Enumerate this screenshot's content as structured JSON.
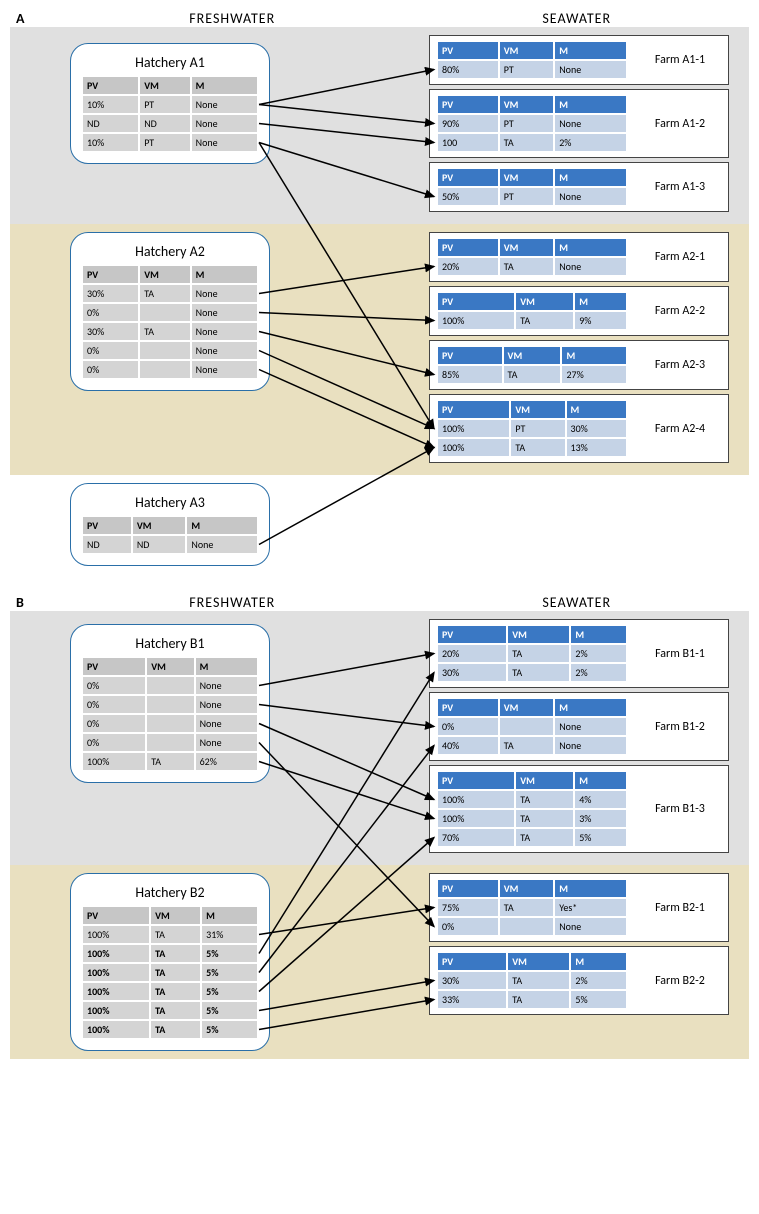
{
  "colors": {
    "region_grey": "#e0e0e0",
    "region_tan": "#e9e0c0",
    "hatch_header_bg": "#c6c6c6",
    "hatch_cell_bg": "#d4d4d4",
    "farm_header_bg": "#3a78c4",
    "farm_header_text": "#ffffff",
    "farm_cell_bg": "#c5d3e6",
    "arrow": "#000000",
    "dashed_arrow": "#a80000",
    "border_blue": "#2a6fa8"
  },
  "column_headers": [
    "PV",
    "VM",
    "M"
  ],
  "header_labels": {
    "left": "FRESHWATER",
    "right": "SEAWATER"
  },
  "panels": [
    {
      "id": "A",
      "regions": [
        {
          "bg": "region_grey",
          "hatchery": {
            "name": "Hatchery A1",
            "rows": [
              [
                "10%",
                "PT",
                "None"
              ],
              [
                "ND",
                "ND",
                "None"
              ],
              [
                "10%",
                "PT",
                "None"
              ]
            ]
          },
          "farms": [
            {
              "name": "Farm A1-1",
              "rows": [
                [
                  "80%",
                  "PT",
                  "None"
                ]
              ]
            },
            {
              "name": "Farm A1-2",
              "rows": [
                [
                  "90%",
                  "PT",
                  "None"
                ],
                [
                  "100",
                  "TA",
                  "2%"
                ]
              ]
            },
            {
              "name": "Farm A1-3",
              "rows": [
                [
                  "50%",
                  "PT",
                  "None"
                ]
              ]
            }
          ]
        },
        {
          "bg": "region_tan",
          "hatchery": {
            "name": "Hatchery A2",
            "rows": [
              [
                "30%",
                "TA",
                "None"
              ],
              [
                "0%",
                "",
                "None"
              ],
              [
                "30%",
                "TA",
                "None"
              ],
              [
                "0%",
                "",
                "None"
              ],
              [
                "0%",
                "",
                "None"
              ]
            ]
          },
          "farms": [
            {
              "name": "Farm A2-1",
              "rows": [
                [
                  "20%",
                  "TA",
                  "None"
                ]
              ]
            },
            {
              "name": "Farm A2-2",
              "rows": [
                [
                  "100%",
                  "TA",
                  "9%"
                ]
              ]
            },
            {
              "name": "Farm A2-3",
              "rows": [
                [
                  "85%",
                  "TA",
                  "27%"
                ]
              ]
            },
            {
              "name": "Farm A2-4",
              "rows": [
                [
                  "100%",
                  "PT",
                  "30%"
                ],
                [
                  "100%",
                  "TA",
                  "13%"
                ]
              ]
            }
          ]
        },
        {
          "bg": "none",
          "hatchery": {
            "name": "Hatchery A3",
            "rows": [
              [
                "ND",
                "ND",
                "None"
              ]
            ]
          },
          "farms": []
        }
      ],
      "connectors": [
        {
          "from": "A1-r0",
          "to": "FA1-1-r0"
        },
        {
          "from": "A1-r0",
          "to": "FA1-2-r0"
        },
        {
          "from": "A1-r1",
          "to": "FA1-2-r1"
        },
        {
          "from": "A1-r2",
          "to": "FA1-3-r0"
        },
        {
          "from": "A1-r2",
          "to": "FA2-4-r0"
        },
        {
          "from": "A2-r0",
          "to": "FA2-1-r0"
        },
        {
          "from": "A2-r1",
          "to": "FA2-2-r0"
        },
        {
          "from": "A2-r2",
          "to": "FA2-3-r0"
        },
        {
          "from": "A2-r3",
          "to": "FA2-4-r0"
        },
        {
          "from": "A2-r4",
          "to": "FA2-4-r1"
        },
        {
          "from": "A3-r0",
          "to": "FA2-4-r1"
        }
      ]
    },
    {
      "id": "B",
      "regions": [
        {
          "bg": "region_grey",
          "hatchery": {
            "name": "Hatchery B1",
            "rows": [
              [
                "0%",
                "",
                "None"
              ],
              [
                "0%",
                "",
                "None"
              ],
              [
                "0%",
                "",
                "None"
              ],
              [
                "0%",
                "",
                "None"
              ],
              [
                "100%",
                "TA",
                "62%"
              ]
            ]
          },
          "farms": [
            {
              "name": "Farm B1-1",
              "rows": [
                [
                  "20%",
                  "TA",
                  "2%"
                ],
                [
                  "30%",
                  "TA",
                  "2%"
                ]
              ]
            },
            {
              "name": "Farm B1-2",
              "rows": [
                [
                  "0%",
                  "",
                  "None"
                ],
                [
                  "40%",
                  "TA",
                  "None"
                ]
              ]
            },
            {
              "name": "Farm B1-3",
              "rows": [
                [
                  "100%",
                  "TA",
                  "4%"
                ],
                [
                  "100%",
                  "TA",
                  "3%"
                ],
                [
                  "70%",
                  "TA",
                  "5%"
                ]
              ]
            }
          ]
        },
        {
          "bg": "region_tan",
          "hatchery": {
            "name": "Hatchery B2",
            "rows": [
              [
                "100%",
                "TA",
                "31%"
              ],
              [
                "100%",
                "TA",
                "5%"
              ],
              [
                "100%",
                "TA",
                "5%"
              ],
              [
                "100%",
                "TA",
                "5%"
              ],
              [
                "100%",
                "TA",
                "5%"
              ],
              [
                "100%",
                "TA",
                "5%"
              ]
            ],
            "bold_rows": [
              1,
              2,
              3,
              4,
              5
            ]
          },
          "farms": [
            {
              "name": "Farm B2-1",
              "rows": [
                [
                  "75%",
                  "TA",
                  "Yes*"
                ],
                [
                  "0%",
                  "",
                  "None"
                ]
              ]
            },
            {
              "name": "Farm B2-2",
              "rows": [
                [
                  "30%",
                  "TA",
                  "2%"
                ],
                [
                  "33%",
                  "TA",
                  "5%"
                ]
              ]
            }
          ]
        }
      ],
      "connectors": [
        {
          "from": "B1-r0",
          "to": "FB1-1-r0"
        },
        {
          "from": "B1-r1",
          "to": "FB1-2-r0"
        },
        {
          "from": "B1-r2",
          "to": "FB1-3-r0"
        },
        {
          "from": "B1-r3",
          "to": "FB2-1-r1"
        },
        {
          "from": "B1-r4",
          "to": "FB1-3-r1"
        },
        {
          "from": "B2-r0",
          "to": "FB2-1-r0"
        },
        {
          "from": "B2-r1",
          "to": "FB1-1-r1"
        },
        {
          "from": "B2-r2",
          "to": "FB1-2-r1"
        },
        {
          "from": "B2-r3",
          "to": "FB1-3-r2"
        },
        {
          "from": "B2-r4",
          "to": "FB2-2-r0"
        },
        {
          "from": "B2-r5",
          "to": "FB2-2-r1"
        }
      ],
      "dashed_connectors": [
        {
          "from": "B2-box",
          "to": "B1-box"
        }
      ]
    }
  ]
}
